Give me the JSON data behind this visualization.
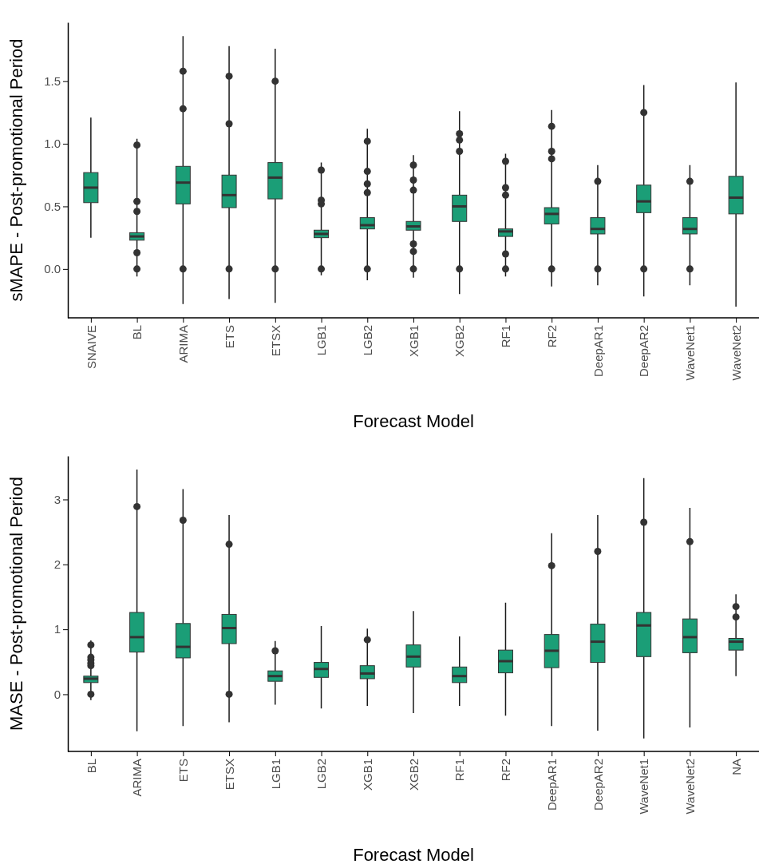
{
  "chart_data": [
    {
      "type": "box",
      "xlabel": "Forecast Model",
      "ylabel": "sMAPE - Post-promotional Period",
      "categories": [
        "SNAIVE",
        "BL",
        "ARIMA",
        "ETS",
        "ETSX",
        "LGB1",
        "LGB2",
        "XGB1",
        "XGB2",
        "RF1",
        "RF2",
        "DeepAR1",
        "DeepAR2",
        "WaveNet1",
        "WaveNet2"
      ],
      "ylim": [
        -0.39,
        1.97
      ],
      "yticks": [
        {
          "value": 0,
          "label": "0.0"
        },
        {
          "value": 0.5,
          "label": "0.5"
        },
        {
          "value": 1,
          "label": "1.0"
        },
        {
          "value": 1.5,
          "label": "1.5"
        }
      ],
      "series": [
        {
          "color": "#1b9e77",
          "boxes": [
            {
              "low": 0.25,
              "q1": 0.53,
              "median": 0.65,
              "q3": 0.77,
              "high": 1.21
            },
            {
              "low": -0.06,
              "q1": 0.23,
              "median": 0.26,
              "q3": 0.29,
              "high": 1.04,
              "outliers": [
                0.99,
                0.54,
                0.46,
                0.13,
                0
              ]
            },
            {
              "low": -0.28,
              "q1": 0.52,
              "median": 0.69,
              "q3": 0.82,
              "high": 1.86,
              "outliers": [
                1.58,
                1.28,
                0
              ]
            },
            {
              "low": -0.24,
              "q1": 0.49,
              "median": 0.59,
              "q3": 0.75,
              "high": 1.78,
              "outliers": [
                1.54,
                1.16,
                0
              ]
            },
            {
              "low": -0.27,
              "q1": 0.56,
              "median": 0.73,
              "q3": 0.85,
              "high": 1.76,
              "outliers": [
                1.5,
                0
              ]
            },
            {
              "low": -0.05,
              "q1": 0.25,
              "median": 0.28,
              "q3": 0.31,
              "high": 0.85,
              "outliers": [
                0.79,
                0.55,
                0.52,
                0
              ]
            },
            {
              "low": -0.09,
              "q1": 0.32,
              "median": 0.35,
              "q3": 0.41,
              "high": 1.12,
              "outliers": [
                1.02,
                0.78,
                0.68,
                0.61,
                0
              ]
            },
            {
              "low": -0.07,
              "q1": 0.31,
              "median": 0.34,
              "q3": 0.38,
              "high": 0.91,
              "outliers": [
                0.83,
                0.71,
                0.63,
                0.2,
                0.14,
                0
              ]
            },
            {
              "low": -0.2,
              "q1": 0.38,
              "median": 0.5,
              "q3": 0.59,
              "high": 1.26,
              "outliers": [
                1.08,
                1.03,
                0.94,
                0
              ]
            },
            {
              "low": -0.06,
              "q1": 0.26,
              "median": 0.3,
              "q3": 0.32,
              "high": 0.92,
              "outliers": [
                0.86,
                0.65,
                0.59,
                0.12,
                0
              ]
            },
            {
              "low": -0.14,
              "q1": 0.36,
              "median": 0.44,
              "q3": 0.49,
              "high": 1.27,
              "outliers": [
                1.14,
                0.94,
                0.88,
                0
              ]
            },
            {
              "low": -0.13,
              "q1": 0.28,
              "median": 0.32,
              "q3": 0.41,
              "high": 0.83,
              "outliers": [
                0.7,
                0
              ]
            },
            {
              "low": -0.22,
              "q1": 0.45,
              "median": 0.54,
              "q3": 0.67,
              "high": 1.47,
              "outliers": [
                1.25,
                0
              ]
            },
            {
              "low": -0.13,
              "q1": 0.28,
              "median": 0.32,
              "q3": 0.41,
              "high": 0.83,
              "outliers": [
                0.7,
                0
              ]
            },
            {
              "low": -0.3,
              "q1": 0.44,
              "median": 0.57,
              "q3": 0.74,
              "high": 1.49
            }
          ]
        }
      ]
    },
    {
      "type": "box",
      "xlabel": "Forecast Model",
      "ylabel": "MASE - Post-promotional Period",
      "categories": [
        "BL",
        "ARIMA",
        "ETS",
        "ETSX",
        "LGB1",
        "LGB2",
        "XGB1",
        "XGB2",
        "RF1",
        "RF2",
        "DeepAR1",
        "DeepAR2",
        "WaveNet1",
        "WaveNet2",
        "NA"
      ],
      "ylim": [
        -0.88,
        3.67
      ],
      "yticks": [
        0,
        1,
        2,
        3
      ],
      "series": [
        {
          "color": "#1b9e77",
          "boxes": [
            {
              "low": -0.09,
              "q1": 0.18,
              "median": 0.24,
              "q3": 0.28,
              "high": 0.83,
              "outliers": [
                0.76,
                0.57,
                0.53,
                0.48,
                0.44,
                0
              ]
            },
            {
              "low": -0.57,
              "q1": 0.65,
              "median": 0.88,
              "q3": 1.26,
              "high": 3.46,
              "outliers": [
                2.89
              ]
            },
            {
              "low": -0.49,
              "q1": 0.56,
              "median": 0.73,
              "q3": 1.09,
              "high": 3.16,
              "outliers": [
                2.68
              ]
            },
            {
              "low": -0.43,
              "q1": 0.78,
              "median": 1.02,
              "q3": 1.23,
              "high": 2.76,
              "outliers": [
                2.31,
                0
              ]
            },
            {
              "low": -0.16,
              "q1": 0.2,
              "median": 0.28,
              "q3": 0.36,
              "high": 0.82,
              "outliers": [
                0.67
              ]
            },
            {
              "low": -0.22,
              "q1": 0.26,
              "median": 0.39,
              "q3": 0.49,
              "high": 1.05
            },
            {
              "low": -0.18,
              "q1": 0.24,
              "median": 0.32,
              "q3": 0.44,
              "high": 1.01,
              "outliers": [
                0.84
              ]
            },
            {
              "low": -0.29,
              "q1": 0.42,
              "median": 0.58,
              "q3": 0.76,
              "high": 1.28
            },
            {
              "low": -0.18,
              "q1": 0.18,
              "median": 0.28,
              "q3": 0.42,
              "high": 0.89
            },
            {
              "low": -0.33,
              "q1": 0.33,
              "median": 0.51,
              "q3": 0.68,
              "high": 1.41
            },
            {
              "low": -0.49,
              "q1": 0.41,
              "median": 0.67,
              "q3": 0.92,
              "high": 2.48,
              "outliers": [
                1.98
              ]
            },
            {
              "low": -0.56,
              "q1": 0.49,
              "median": 0.81,
              "q3": 1.08,
              "high": 2.76,
              "outliers": [
                2.2
              ]
            },
            {
              "low": -0.68,
              "q1": 0.58,
              "median": 1.06,
              "q3": 1.26,
              "high": 3.33,
              "outliers": [
                2.65
              ]
            },
            {
              "low": -0.51,
              "q1": 0.64,
              "median": 0.88,
              "q3": 1.16,
              "high": 2.87,
              "outliers": [
                2.35
              ]
            },
            {
              "low": 0.28,
              "q1": 0.68,
              "median": 0.81,
              "q3": 0.86,
              "high": 1.54,
              "outliers": [
                1.35,
                1.19
              ]
            }
          ]
        }
      ]
    }
  ]
}
